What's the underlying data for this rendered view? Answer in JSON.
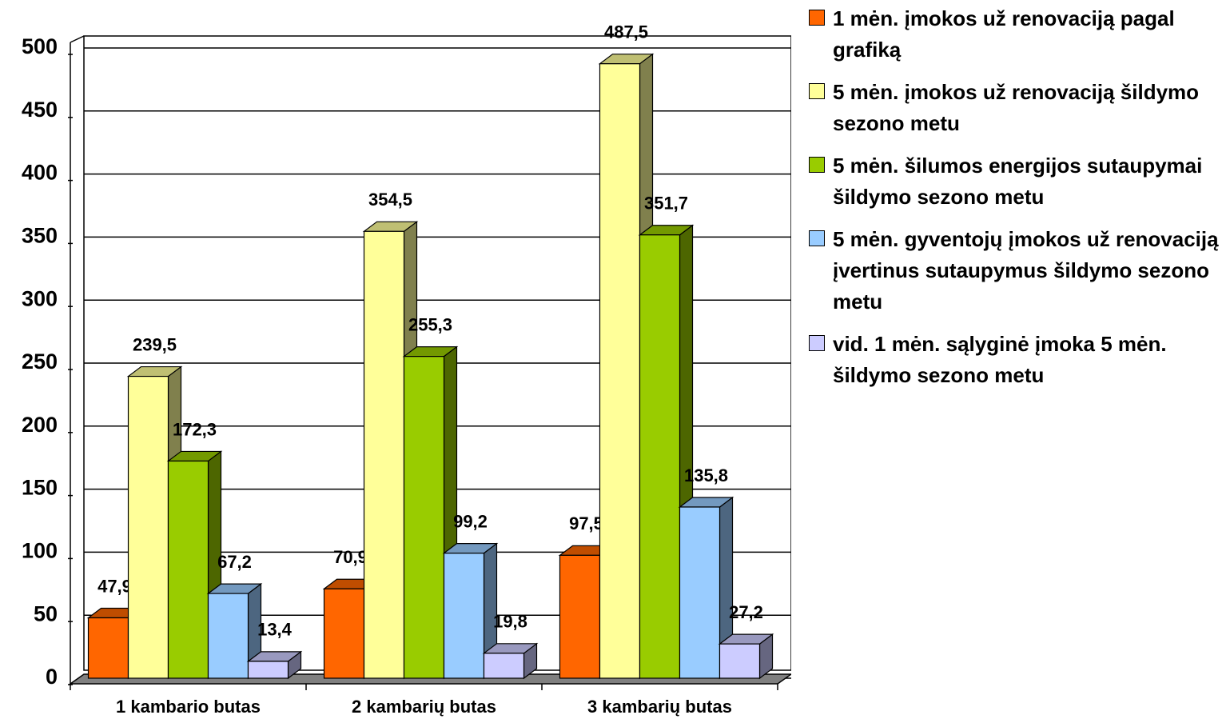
{
  "chart_data": {
    "type": "bar3d",
    "categories": [
      "1 kambario butas",
      "2 kambarių butas",
      "3 kambarių butas"
    ],
    "series": [
      {
        "name": "1 mėn. įmokos už renovaciją pagal grafiką",
        "color": "#ff6600",
        "values": [
          47.9,
          70.9,
          97.5
        ],
        "value_labels": [
          "47,9",
          "70,9",
          "97,5"
        ]
      },
      {
        "name": "5 mėn. įmokos už renovaciją šildymo sezono metu",
        "color": "#ffff99",
        "values": [
          239.5,
          354.5,
          487.5
        ],
        "value_labels": [
          "239,5",
          "354,5",
          "487,5"
        ]
      },
      {
        "name": "5 mėn. šilumos energijos sutaupymai šildymo sezono metu",
        "color": "#99cc00",
        "values": [
          172.3,
          255.3,
          351.7
        ],
        "value_labels": [
          "172,3",
          "255,3",
          "351,7"
        ]
      },
      {
        "name": "5 mėn. gyventojų įmokos už renovaciją įvertinus sutaupymus šildymo sezono metu",
        "color": "#99ccff",
        "values": [
          67.2,
          99.2,
          135.8
        ],
        "value_labels": [
          "67,2",
          "99,2",
          "135,8"
        ]
      },
      {
        "name": "vid. 1 mėn. sąlyginė įmoka 5 mėn. šildymo sezono metu",
        "color": "#ccccff",
        "values": [
          13.4,
          19.8,
          27.2
        ],
        "value_labels": [
          "13,4",
          "19,8",
          "27,2"
        ]
      }
    ],
    "ylim": [
      0,
      500
    ],
    "yticks": [
      0,
      50,
      100,
      150,
      200,
      250,
      300,
      350,
      400,
      450,
      500
    ],
    "grid": true,
    "legend": "right"
  }
}
